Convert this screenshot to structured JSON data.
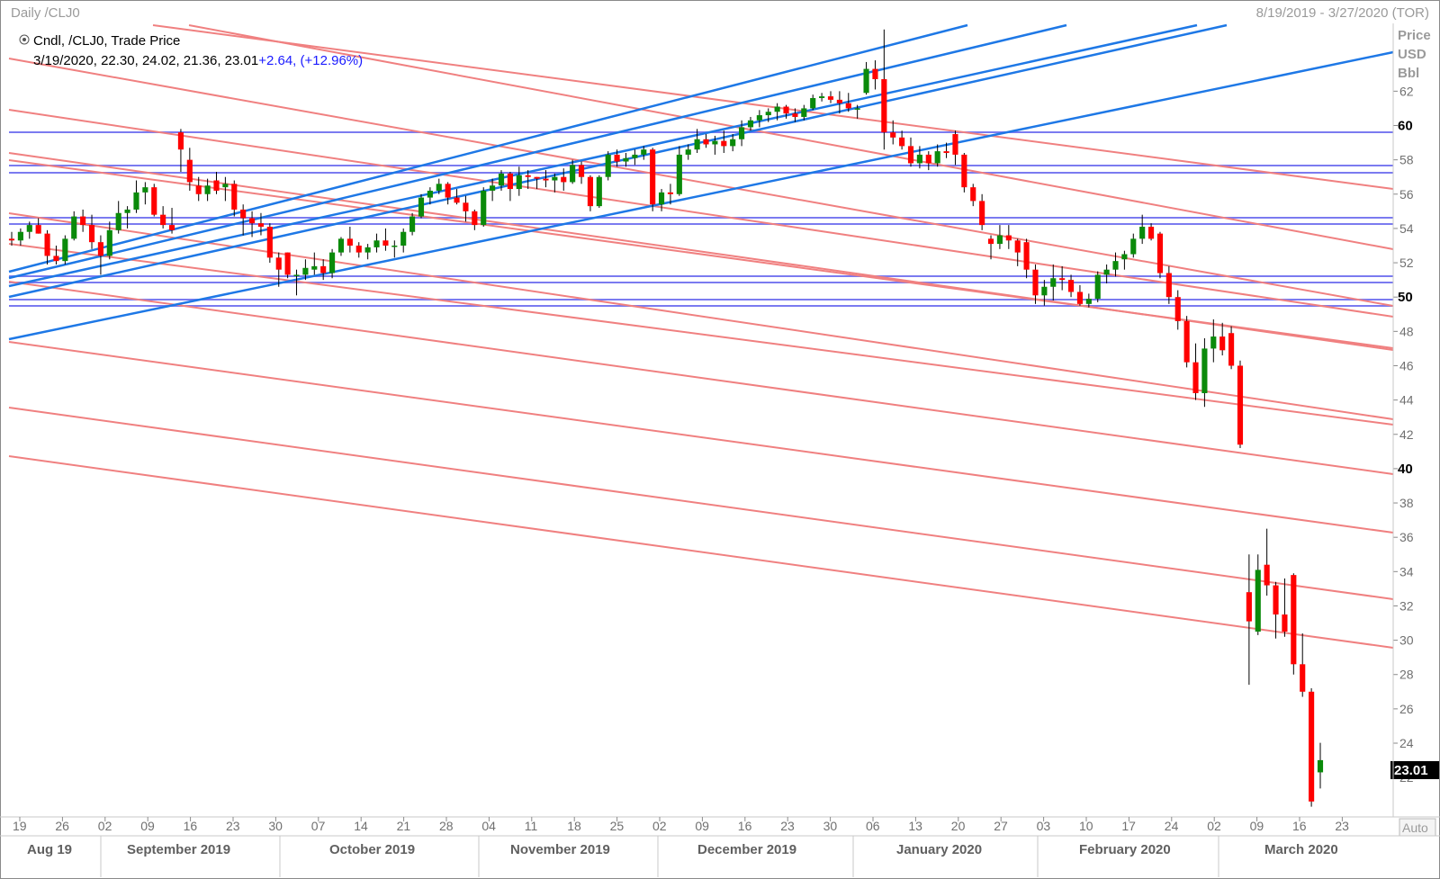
{
  "window": {
    "title": "Daily /CLJ0",
    "date_range": "8/19/2019 - 3/27/2020 (TOR)"
  },
  "legend": {
    "series": "Cndl, /CLJ0, Trade Price",
    "ohlc": "3/19/2020, 22.30, 24.02, 21.36, 23.01",
    "change": "+2.64, (+12.96%)"
  },
  "axis": {
    "price_label": "Price",
    "currency_label": "USD",
    "unit_label": "Bbl",
    "last_price": "23.01",
    "auto_button": "Auto"
  },
  "colors": {
    "up": "#0a8a0a",
    "down": "#ff0000",
    "support_resistance": "#f08080",
    "channel": "#1e78e6",
    "horizontal": "#7b7bf0",
    "last_price_bg": "#000000"
  },
  "chart_data": {
    "type": "candlestick",
    "title": "Daily /CLJ0",
    "ylim": [
      20,
      64
    ],
    "y_ticks": [
      22,
      24,
      26,
      28,
      30,
      32,
      34,
      36,
      38,
      40,
      42,
      44,
      46,
      48,
      50,
      52,
      54,
      56,
      58,
      60,
      62
    ],
    "y_ticks_bold": [
      40,
      50,
      60
    ],
    "x_tick_labels": [
      "19",
      "26",
      "02",
      "09",
      "16",
      "23",
      "30",
      "07",
      "14",
      "21",
      "28",
      "04",
      "11",
      "18",
      "25",
      "02",
      "09",
      "16",
      "23",
      "30",
      "06",
      "13",
      "20",
      "27",
      "03",
      "10",
      "17",
      "24",
      "02",
      "09",
      "16",
      "23"
    ],
    "months": [
      "Aug 19",
      "September 2019",
      "October 2019",
      "November 2019",
      "December 2019",
      "January 2020",
      "February 2020",
      "March 2020"
    ],
    "candles": [
      {
        "date": "2019-08-19",
        "o": 53.4,
        "h": 53.8,
        "l": 53.0,
        "c": 53.3
      },
      {
        "date": "2019-08-20",
        "o": 53.3,
        "h": 54.0,
        "l": 53.0,
        "c": 53.8
      },
      {
        "date": "2019-08-21",
        "o": 53.8,
        "h": 54.4,
        "l": 53.4,
        "c": 54.2
      },
      {
        "date": "2019-08-22",
        "o": 54.2,
        "h": 54.6,
        "l": 53.7,
        "c": 53.7
      },
      {
        "date": "2019-08-23",
        "o": 53.7,
        "h": 53.9,
        "l": 51.9,
        "c": 52.4
      },
      {
        "date": "2019-08-26",
        "o": 52.4,
        "h": 53.0,
        "l": 51.9,
        "c": 52.1
      },
      {
        "date": "2019-08-27",
        "o": 52.1,
        "h": 53.6,
        "l": 51.9,
        "c": 53.4
      },
      {
        "date": "2019-08-28",
        "o": 53.4,
        "h": 55.0,
        "l": 53.3,
        "c": 54.7
      },
      {
        "date": "2019-08-29",
        "o": 54.7,
        "h": 55.1,
        "l": 53.8,
        "c": 54.2
      },
      {
        "date": "2019-08-30",
        "o": 54.2,
        "h": 54.8,
        "l": 52.8,
        "c": 53.2
      },
      {
        "date": "2019-09-03",
        "o": 53.2,
        "h": 53.6,
        "l": 51.3,
        "c": 52.4
      },
      {
        "date": "2019-09-04",
        "o": 52.4,
        "h": 54.4,
        "l": 52.2,
        "c": 53.9
      },
      {
        "date": "2019-09-05",
        "o": 53.9,
        "h": 55.6,
        "l": 53.7,
        "c": 54.9
      },
      {
        "date": "2019-09-06",
        "o": 54.9,
        "h": 55.3,
        "l": 54.0,
        "c": 55.1
      },
      {
        "date": "2019-09-09",
        "o": 55.1,
        "h": 56.8,
        "l": 54.9,
        "c": 56.1
      },
      {
        "date": "2019-09-10",
        "o": 56.1,
        "h": 56.7,
        "l": 55.4,
        "c": 56.4
      },
      {
        "date": "2019-09-11",
        "o": 56.4,
        "h": 56.6,
        "l": 54.7,
        "c": 54.8
      },
      {
        "date": "2019-09-12",
        "o": 54.8,
        "h": 55.3,
        "l": 54.0,
        "c": 54.2
      },
      {
        "date": "2019-09-13",
        "o": 54.2,
        "h": 55.2,
        "l": 53.7,
        "c": 53.9
      },
      {
        "date": "2019-09-16",
        "o": 59.6,
        "h": 59.8,
        "l": 57.3,
        "c": 58.6
      },
      {
        "date": "2019-09-17",
        "o": 58.0,
        "h": 58.7,
        "l": 56.2,
        "c": 56.7
      },
      {
        "date": "2019-09-18",
        "o": 56.5,
        "h": 57.0,
        "l": 55.6,
        "c": 56.0
      },
      {
        "date": "2019-09-19",
        "o": 56.0,
        "h": 56.9,
        "l": 55.6,
        "c": 56.5
      },
      {
        "date": "2019-09-20",
        "o": 56.8,
        "h": 57.3,
        "l": 56.0,
        "c": 56.2
      },
      {
        "date": "2019-09-23",
        "o": 56.4,
        "h": 57.0,
        "l": 55.6,
        "c": 56.6
      },
      {
        "date": "2019-09-24",
        "o": 56.6,
        "h": 56.8,
        "l": 54.7,
        "c": 55.1
      },
      {
        "date": "2019-09-25",
        "o": 55.1,
        "h": 55.4,
        "l": 53.6,
        "c": 54.6
      },
      {
        "date": "2019-09-26",
        "o": 54.6,
        "h": 55.0,
        "l": 53.5,
        "c": 54.3
      },
      {
        "date": "2019-09-27",
        "o": 54.3,
        "h": 54.9,
        "l": 53.6,
        "c": 54.1
      },
      {
        "date": "2019-09-30",
        "o": 54.1,
        "h": 54.3,
        "l": 52.0,
        "c": 52.3
      },
      {
        "date": "2019-10-01",
        "o": 52.3,
        "h": 52.6,
        "l": 50.6,
        "c": 51.6
      },
      {
        "date": "2019-10-02",
        "o": 52.6,
        "h": 52.6,
        "l": 51.1,
        "c": 51.3
      },
      {
        "date": "2019-10-03",
        "o": 51.3,
        "h": 51.6,
        "l": 50.1,
        "c": 51.3
      },
      {
        "date": "2019-10-04",
        "o": 51.3,
        "h": 52.2,
        "l": 51.0,
        "c": 51.7
      },
      {
        "date": "2019-10-07",
        "o": 51.6,
        "h": 52.6,
        "l": 51.3,
        "c": 51.8
      },
      {
        "date": "2019-10-08",
        "o": 51.8,
        "h": 52.2,
        "l": 51.0,
        "c": 51.4
      },
      {
        "date": "2019-10-09",
        "o": 51.4,
        "h": 52.8,
        "l": 51.1,
        "c": 52.6
      },
      {
        "date": "2019-10-10",
        "o": 52.6,
        "h": 53.5,
        "l": 52.4,
        "c": 53.4
      },
      {
        "date": "2019-10-11",
        "o": 53.4,
        "h": 54.1,
        "l": 52.6,
        "c": 53.0
      },
      {
        "date": "2019-10-14",
        "o": 53.0,
        "h": 53.2,
        "l": 52.3,
        "c": 52.6
      },
      {
        "date": "2019-10-15",
        "o": 52.6,
        "h": 53.1,
        "l": 52.2,
        "c": 52.9
      },
      {
        "date": "2019-10-16",
        "o": 52.9,
        "h": 53.7,
        "l": 52.6,
        "c": 53.3
      },
      {
        "date": "2019-10-17",
        "o": 53.3,
        "h": 54.0,
        "l": 52.7,
        "c": 53.0
      },
      {
        "date": "2019-10-18",
        "o": 53.0,
        "h": 53.3,
        "l": 52.3,
        "c": 53.0
      },
      {
        "date": "2019-10-21",
        "o": 53.0,
        "h": 54.0,
        "l": 52.6,
        "c": 53.8
      },
      {
        "date": "2019-10-22",
        "o": 53.8,
        "h": 54.9,
        "l": 53.6,
        "c": 54.7
      },
      {
        "date": "2019-10-23",
        "o": 54.7,
        "h": 56.0,
        "l": 54.6,
        "c": 55.8
      },
      {
        "date": "2019-10-24",
        "o": 55.8,
        "h": 56.4,
        "l": 55.4,
        "c": 56.2
      },
      {
        "date": "2019-10-25",
        "o": 56.2,
        "h": 56.9,
        "l": 56.0,
        "c": 56.6
      },
      {
        "date": "2019-10-28",
        "o": 56.6,
        "h": 56.7,
        "l": 55.4,
        "c": 55.8
      },
      {
        "date": "2019-10-29",
        "o": 55.8,
        "h": 56.3,
        "l": 55.4,
        "c": 55.5
      },
      {
        "date": "2019-10-30",
        "o": 55.5,
        "h": 55.9,
        "l": 54.4,
        "c": 55.0
      },
      {
        "date": "2019-10-31",
        "o": 55.0,
        "h": 55.1,
        "l": 53.9,
        "c": 54.2
      },
      {
        "date": "2019-11-01",
        "o": 54.2,
        "h": 56.4,
        "l": 54.1,
        "c": 56.2
      },
      {
        "date": "2019-11-04",
        "o": 56.2,
        "h": 56.9,
        "l": 55.6,
        "c": 56.5
      },
      {
        "date": "2019-11-05",
        "o": 56.5,
        "h": 57.4,
        "l": 56.2,
        "c": 57.2
      },
      {
        "date": "2019-11-06",
        "o": 57.2,
        "h": 57.3,
        "l": 55.6,
        "c": 56.3
      },
      {
        "date": "2019-11-07",
        "o": 56.3,
        "h": 57.6,
        "l": 55.9,
        "c": 57.1
      },
      {
        "date": "2019-11-08",
        "o": 57.1,
        "h": 57.4,
        "l": 56.3,
        "c": 57.0
      },
      {
        "date": "2019-11-11",
        "o": 57.0,
        "h": 57.0,
        "l": 56.3,
        "c": 56.9
      },
      {
        "date": "2019-11-12",
        "o": 56.9,
        "h": 57.4,
        "l": 56.4,
        "c": 56.8
      },
      {
        "date": "2019-11-13",
        "o": 56.8,
        "h": 57.2,
        "l": 56.1,
        "c": 57.0
      },
      {
        "date": "2019-11-14",
        "o": 57.0,
        "h": 57.5,
        "l": 56.2,
        "c": 56.7
      },
      {
        "date": "2019-11-15",
        "o": 56.7,
        "h": 58.0,
        "l": 56.6,
        "c": 57.7
      },
      {
        "date": "2019-11-18",
        "o": 57.7,
        "h": 57.9,
        "l": 56.6,
        "c": 57.0
      },
      {
        "date": "2019-11-19",
        "o": 57.0,
        "h": 57.1,
        "l": 55.0,
        "c": 55.3
      },
      {
        "date": "2019-11-20",
        "o": 55.3,
        "h": 57.1,
        "l": 55.2,
        "c": 57.0
      },
      {
        "date": "2019-11-21",
        "o": 57.0,
        "h": 58.5,
        "l": 56.8,
        "c": 58.3
      },
      {
        "date": "2019-11-22",
        "o": 58.3,
        "h": 58.6,
        "l": 57.6,
        "c": 57.9
      },
      {
        "date": "2019-11-25",
        "o": 57.9,
        "h": 58.4,
        "l": 57.6,
        "c": 58.1
      },
      {
        "date": "2019-11-26",
        "o": 58.1,
        "h": 58.6,
        "l": 57.7,
        "c": 58.3
      },
      {
        "date": "2019-11-27",
        "o": 58.3,
        "h": 58.8,
        "l": 58.0,
        "c": 58.6
      },
      {
        "date": "2019-11-29",
        "o": 58.6,
        "h": 58.7,
        "l": 55.0,
        "c": 55.4
      },
      {
        "date": "2019-12-02",
        "o": 55.4,
        "h": 56.3,
        "l": 55.0,
        "c": 56.1
      },
      {
        "date": "2019-12-03",
        "o": 56.1,
        "h": 56.6,
        "l": 55.4,
        "c": 56.0
      },
      {
        "date": "2019-12-04",
        "o": 56.0,
        "h": 58.8,
        "l": 55.9,
        "c": 58.3
      },
      {
        "date": "2019-12-05",
        "o": 58.3,
        "h": 58.9,
        "l": 58.0,
        "c": 58.6
      },
      {
        "date": "2019-12-06",
        "o": 58.6,
        "h": 59.8,
        "l": 58.4,
        "c": 59.2
      },
      {
        "date": "2019-12-09",
        "o": 59.2,
        "h": 59.5,
        "l": 58.7,
        "c": 58.9
      },
      {
        "date": "2019-12-10",
        "o": 58.9,
        "h": 59.4,
        "l": 58.3,
        "c": 59.1
      },
      {
        "date": "2019-12-11",
        "o": 59.1,
        "h": 59.7,
        "l": 58.4,
        "c": 58.8
      },
      {
        "date": "2019-12-12",
        "o": 58.8,
        "h": 59.5,
        "l": 58.5,
        "c": 59.2
      },
      {
        "date": "2019-12-13",
        "o": 59.2,
        "h": 60.3,
        "l": 58.8,
        "c": 59.9
      },
      {
        "date": "2019-12-16",
        "o": 59.9,
        "h": 60.5,
        "l": 59.7,
        "c": 60.3
      },
      {
        "date": "2019-12-17",
        "o": 60.3,
        "h": 60.9,
        "l": 59.9,
        "c": 60.6
      },
      {
        "date": "2019-12-18",
        "o": 60.6,
        "h": 61.0,
        "l": 60.2,
        "c": 60.8
      },
      {
        "date": "2019-12-19",
        "o": 60.8,
        "h": 61.3,
        "l": 60.3,
        "c": 61.1
      },
      {
        "date": "2019-12-20",
        "o": 61.1,
        "h": 61.2,
        "l": 60.4,
        "c": 60.7
      },
      {
        "date": "2019-12-23",
        "o": 60.7,
        "h": 61.0,
        "l": 60.2,
        "c": 60.5
      },
      {
        "date": "2019-12-24",
        "o": 60.5,
        "h": 61.2,
        "l": 60.3,
        "c": 61.0
      },
      {
        "date": "2019-12-26",
        "o": 61.0,
        "h": 61.8,
        "l": 60.9,
        "c": 61.6
      },
      {
        "date": "2019-12-27",
        "o": 61.6,
        "h": 61.9,
        "l": 61.4,
        "c": 61.7
      },
      {
        "date": "2019-12-30",
        "o": 61.7,
        "h": 62.0,
        "l": 61.3,
        "c": 61.5
      },
      {
        "date": "2019-12-31",
        "o": 61.5,
        "h": 62.0,
        "l": 60.7,
        "c": 61.3
      },
      {
        "date": "2020-01-02",
        "o": 61.3,
        "h": 61.9,
        "l": 60.8,
        "c": 61.0
      },
      {
        "date": "2020-01-03",
        "o": 61.0,
        "h": 61.2,
        "l": 60.4,
        "c": 61.0
      },
      {
        "date": "2020-01-06",
        "o": 61.9,
        "h": 63.7,
        "l": 61.8,
        "c": 63.3
      },
      {
        "date": "2020-01-07",
        "o": 63.3,
        "h": 63.8,
        "l": 62.1,
        "c": 62.7
      },
      {
        "date": "2020-01-08",
        "o": 62.7,
        "h": 65.6,
        "l": 58.6,
        "c": 59.6
      },
      {
        "date": "2020-01-09",
        "o": 59.6,
        "h": 60.3,
        "l": 58.9,
        "c": 59.3
      },
      {
        "date": "2020-01-10",
        "o": 59.3,
        "h": 59.7,
        "l": 58.6,
        "c": 58.8
      },
      {
        "date": "2020-01-13",
        "o": 58.8,
        "h": 59.3,
        "l": 57.6,
        "c": 57.8
      },
      {
        "date": "2020-01-14",
        "o": 57.8,
        "h": 58.8,
        "l": 57.5,
        "c": 58.3
      },
      {
        "date": "2020-01-15",
        "o": 58.3,
        "h": 58.5,
        "l": 57.4,
        "c": 57.8
      },
      {
        "date": "2020-01-16",
        "o": 57.8,
        "h": 58.9,
        "l": 57.6,
        "c": 58.5
      },
      {
        "date": "2020-01-17",
        "o": 58.5,
        "h": 59.0,
        "l": 58.1,
        "c": 58.4
      },
      {
        "date": "2020-01-21",
        "o": 59.5,
        "h": 59.7,
        "l": 57.7,
        "c": 58.3
      },
      {
        "date": "2020-01-22",
        "o": 58.3,
        "h": 58.4,
        "l": 56.1,
        "c": 56.4
      },
      {
        "date": "2020-01-23",
        "o": 56.4,
        "h": 56.6,
        "l": 55.3,
        "c": 55.6
      },
      {
        "date": "2020-01-24",
        "o": 55.6,
        "h": 56.0,
        "l": 53.9,
        "c": 54.2
      },
      {
        "date": "2020-01-27",
        "o": 53.4,
        "h": 53.6,
        "l": 52.2,
        "c": 53.1
      },
      {
        "date": "2020-01-28",
        "o": 53.1,
        "h": 54.2,
        "l": 52.8,
        "c": 53.6
      },
      {
        "date": "2020-01-29",
        "o": 53.6,
        "h": 54.2,
        "l": 52.8,
        "c": 53.3
      },
      {
        "date": "2020-01-30",
        "o": 53.3,
        "h": 53.4,
        "l": 51.8,
        "c": 52.6
      },
      {
        "date": "2020-01-31",
        "o": 53.2,
        "h": 53.4,
        "l": 51.1,
        "c": 51.6
      },
      {
        "date": "2020-02-03",
        "o": 51.6,
        "h": 51.9,
        "l": 49.6,
        "c": 50.1
      },
      {
        "date": "2020-02-04",
        "o": 50.1,
        "h": 51.0,
        "l": 49.5,
        "c": 50.6
      },
      {
        "date": "2020-02-05",
        "o": 50.6,
        "h": 51.9,
        "l": 49.8,
        "c": 51.1
      },
      {
        "date": "2020-02-06",
        "o": 51.1,
        "h": 51.8,
        "l": 50.4,
        "c": 51.0
      },
      {
        "date": "2020-02-07",
        "o": 51.0,
        "h": 51.3,
        "l": 50.0,
        "c": 50.3
      },
      {
        "date": "2020-02-10",
        "o": 50.3,
        "h": 50.7,
        "l": 49.5,
        "c": 49.6
      },
      {
        "date": "2020-02-11",
        "o": 49.6,
        "h": 50.2,
        "l": 49.4,
        "c": 49.9
      },
      {
        "date": "2020-02-12",
        "o": 49.9,
        "h": 51.5,
        "l": 49.7,
        "c": 51.3
      },
      {
        "date": "2020-02-13",
        "o": 51.3,
        "h": 51.9,
        "l": 50.8,
        "c": 51.6
      },
      {
        "date": "2020-02-14",
        "o": 51.6,
        "h": 52.6,
        "l": 51.2,
        "c": 52.1
      },
      {
        "date": "2020-02-18",
        "o": 52.2,
        "h": 52.7,
        "l": 51.6,
        "c": 52.5
      },
      {
        "date": "2020-02-19",
        "o": 52.5,
        "h": 53.7,
        "l": 52.3,
        "c": 53.4
      },
      {
        "date": "2020-02-20",
        "o": 53.4,
        "h": 54.8,
        "l": 53.1,
        "c": 54.1
      },
      {
        "date": "2020-02-21",
        "o": 54.1,
        "h": 54.3,
        "l": 53.3,
        "c": 53.4
      },
      {
        "date": "2020-02-24",
        "o": 53.7,
        "h": 53.8,
        "l": 51.1,
        "c": 51.4
      },
      {
        "date": "2020-02-25",
        "o": 51.4,
        "h": 51.8,
        "l": 49.6,
        "c": 50.0
      },
      {
        "date": "2020-02-26",
        "o": 50.0,
        "h": 50.4,
        "l": 48.1,
        "c": 48.6
      },
      {
        "date": "2020-02-27",
        "o": 48.6,
        "h": 48.9,
        "l": 45.9,
        "c": 46.2
      },
      {
        "date": "2020-02-28",
        "o": 46.2,
        "h": 47.3,
        "l": 44.0,
        "c": 44.4
      },
      {
        "date": "2020-03-02",
        "o": 44.4,
        "h": 47.6,
        "l": 43.6,
        "c": 47.0
      },
      {
        "date": "2020-03-03",
        "o": 47.0,
        "h": 48.7,
        "l": 46.2,
        "c": 47.7
      },
      {
        "date": "2020-03-04",
        "o": 47.7,
        "h": 48.5,
        "l": 46.6,
        "c": 46.9
      },
      {
        "date": "2020-03-05",
        "o": 47.9,
        "h": 48.3,
        "l": 45.8,
        "c": 46.0
      },
      {
        "date": "2020-03-06",
        "o": 46.0,
        "h": 46.3,
        "l": 41.2,
        "c": 41.4
      },
      {
        "date": "2020-03-09",
        "o": 32.8,
        "h": 35.0,
        "l": 27.4,
        "c": 31.1
      },
      {
        "date": "2020-03-10",
        "o": 30.5,
        "h": 35.0,
        "l": 30.3,
        "c": 34.1
      },
      {
        "date": "2020-03-11",
        "o": 34.4,
        "h": 36.5,
        "l": 32.6,
        "c": 33.2
      },
      {
        "date": "2020-03-12",
        "o": 33.2,
        "h": 33.4,
        "l": 30.1,
        "c": 31.5
      },
      {
        "date": "2020-03-13",
        "o": 31.5,
        "h": 33.6,
        "l": 30.2,
        "c": 30.5
      },
      {
        "date": "2020-03-16",
        "o": 33.8,
        "h": 33.9,
        "l": 28.0,
        "c": 28.6
      },
      {
        "date": "2020-03-17",
        "o": 28.6,
        "h": 30.4,
        "l": 26.7,
        "c": 27.0
      },
      {
        "date": "2020-03-18",
        "o": 27.0,
        "h": 27.2,
        "l": 20.3,
        "c": 20.6
      },
      {
        "date": "2020-03-19",
        "o": 22.3,
        "h": 24.02,
        "l": 21.36,
        "c": 23.01
      }
    ]
  }
}
